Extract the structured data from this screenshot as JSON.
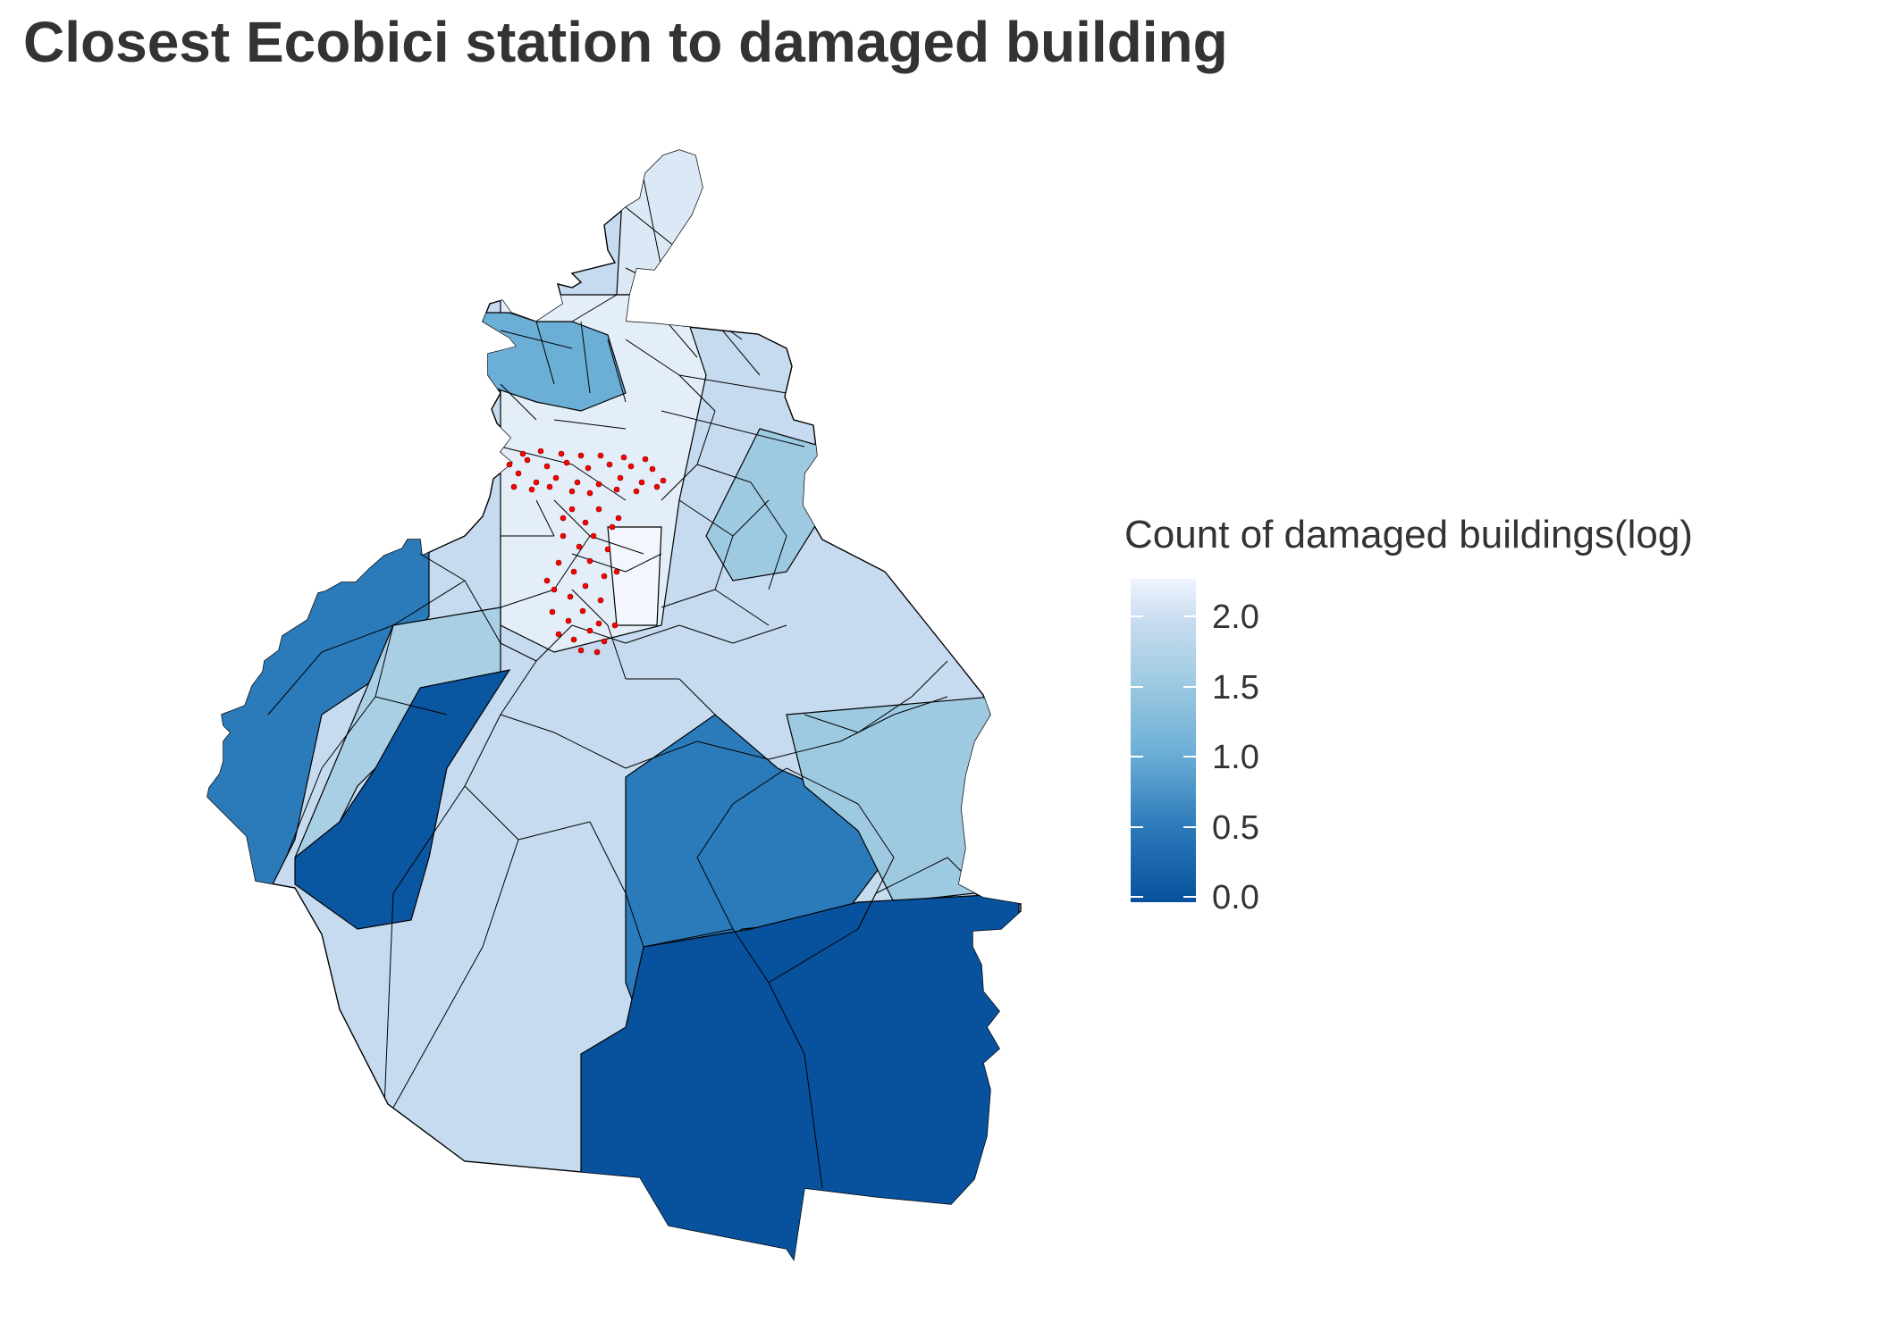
{
  "title": "Closest Ecobici station to damaged building",
  "legend": {
    "title": "Count of damaged buildings(log)",
    "ticks": [
      "2.0",
      "1.5",
      "1.0",
      "0.5",
      "0.0"
    ],
    "range": [
      0,
      2.2
    ],
    "colors": {
      "low": "#08519c",
      "high": "#eff3ff"
    }
  },
  "colors": {
    "highlight_points": "#ff0000",
    "boundary": "#000000"
  }
}
